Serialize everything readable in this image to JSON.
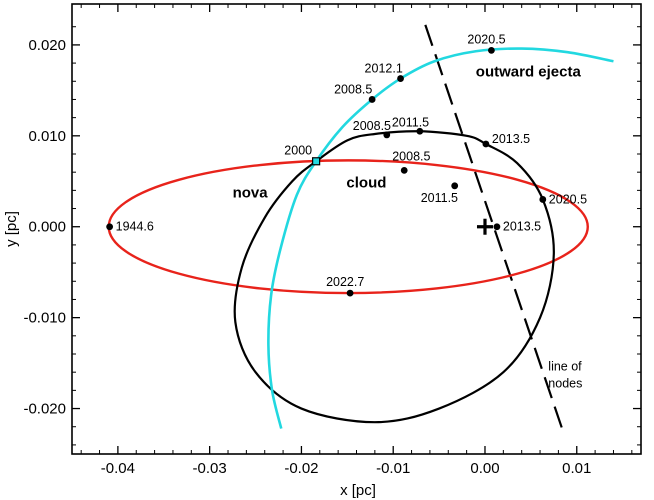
{
  "chart_data": {
    "type": "line",
    "xlabel": "x [pc]",
    "ylabel": "y [pc]",
    "xlim": [
      -0.045,
      0.017
    ],
    "ylim": [
      -0.025,
      0.0245
    ],
    "grid": false,
    "xticks": [
      "-0.04",
      "-0.03",
      "-0.02",
      "-0.01",
      "0.00",
      "0.01"
    ],
    "xtick_values": [
      -0.04,
      -0.03,
      -0.02,
      -0.01,
      0.0,
      0.01
    ],
    "yticks": [
      "0.020",
      "0.010",
      "0.000",
      "-0.010",
      "-0.020"
    ],
    "ytick_values": [
      0.02,
      0.01,
      0.0,
      -0.01,
      -0.02
    ],
    "colors": {
      "nova": "#e8231b",
      "cloud": "#000000",
      "ejecta": "#22d8e0",
      "nodes": "#000000"
    },
    "series": [
      {
        "name": "nova",
        "kind": "ellipse",
        "color": "#e8231b",
        "cx": -0.0149,
        "cy": 0.0,
        "rx": 0.0261,
        "ry": 0.0073,
        "points": [
          {
            "label": "1944.6",
            "x": -0.0409,
            "y": 0.0
          },
          {
            "label": "2000",
            "x": -0.0184,
            "y": 0.0072
          },
          {
            "label": "2008.5",
            "x": -0.0088,
            "y": 0.0062
          },
          {
            "label": "2011.5",
            "x": -0.0033,
            "y": 0.0045
          },
          {
            "label": "2013.5",
            "x": 0.0013,
            "y": 0.0
          },
          {
            "label": "2022.7",
            "x": -0.0147,
            "y": -0.0073
          }
        ]
      },
      {
        "name": "cloud",
        "kind": "closed-curve",
        "color": "#000000",
        "path": [
          [
            -0.0184,
            0.0072
          ],
          [
            -0.015,
            0.0095
          ],
          [
            -0.012,
            0.0102
          ],
          [
            -0.0072,
            0.0105
          ],
          [
            -0.002,
            0.01
          ],
          [
            0.0001,
            0.0091
          ],
          [
            0.0035,
            0.007
          ],
          [
            0.0063,
            0.003
          ],
          [
            0.0075,
            -0.003
          ],
          [
            0.006,
            -0.01
          ],
          [
            0.002,
            -0.016
          ],
          [
            -0.005,
            -0.02
          ],
          [
            -0.012,
            -0.0215
          ],
          [
            -0.02,
            -0.02
          ],
          [
            -0.025,
            -0.016
          ],
          [
            -0.0272,
            -0.0105
          ],
          [
            -0.0265,
            -0.0045
          ],
          [
            -0.024,
            0.001
          ],
          [
            -0.021,
            0.005
          ]
        ],
        "points": [
          {
            "label": "2008.5",
            "x": -0.0107,
            "y": 0.0101
          },
          {
            "label": "2011.5",
            "x": -0.0071,
            "y": 0.0105
          },
          {
            "label": "2013.5",
            "x": 0.0001,
            "y": 0.0091
          },
          {
            "label": "2020.5",
            "x": 0.0063,
            "y": 0.003
          }
        ]
      },
      {
        "name": "outward ejecta",
        "kind": "open-curve",
        "color": "#22d8e0",
        "path": [
          [
            -0.0222,
            -0.0222
          ],
          [
            -0.0232,
            -0.018
          ],
          [
            -0.0236,
            -0.013
          ],
          [
            -0.0233,
            -0.0075
          ],
          [
            -0.0223,
            -0.0025
          ],
          [
            -0.0205,
            0.0035
          ],
          [
            -0.0184,
            0.0072
          ],
          [
            -0.0155,
            0.011
          ],
          [
            -0.0123,
            0.014
          ],
          [
            -0.0092,
            0.0163
          ],
          [
            -0.0055,
            0.0182
          ],
          [
            -0.001,
            0.0193
          ],
          [
            0.004,
            0.0196
          ],
          [
            0.009,
            0.0192
          ],
          [
            0.014,
            0.0182
          ]
        ],
        "points": [
          {
            "label": "2008.5",
            "x": -0.0123,
            "y": 0.014
          },
          {
            "label": "2012.1",
            "x": -0.0092,
            "y": 0.0163
          },
          {
            "label": "2020.5",
            "x": 0.0007,
            "y": 0.0194
          }
        ]
      },
      {
        "name": "line of nodes",
        "kind": "dashed-line",
        "color": "#000000",
        "from": [
          -0.0065,
          0.0222
        ],
        "to": [
          0.0085,
          -0.0225
        ]
      }
    ],
    "annotations": [
      {
        "text": "nova",
        "series": "nova"
      },
      {
        "text": "cloud",
        "series": "cloud"
      },
      {
        "text": "outward ejecta",
        "series": "outward ejecta"
      },
      {
        "text": "line of",
        "series": "line of nodes"
      },
      {
        "text": "nodes",
        "series": "line of nodes"
      }
    ],
    "markers": [
      {
        "kind": "square",
        "x": -0.0184,
        "y": 0.0072
      },
      {
        "kind": "cross",
        "x": 0.0,
        "y": 0.0
      }
    ]
  }
}
